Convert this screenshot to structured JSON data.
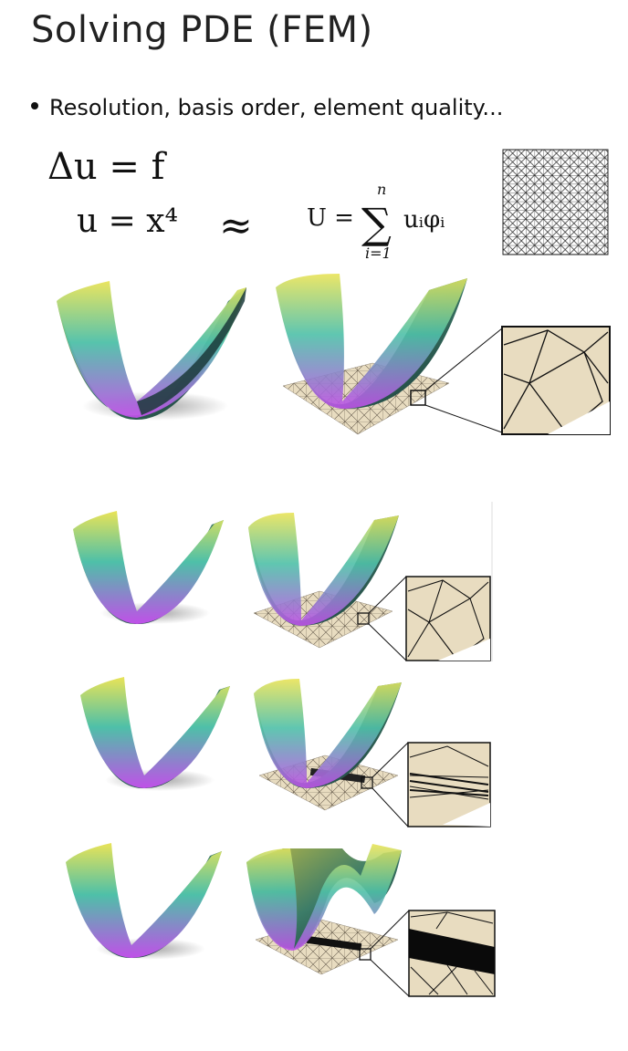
{
  "slide": {
    "title": "Solving PDE (FEM)",
    "bullet": "Resolution, basis order, element quality..."
  },
  "equations": {
    "pde": "Δu = f",
    "exact": "u = x⁴",
    "approx_symbol": "≈",
    "discrete_lhs": "U =",
    "sum_upper": "n",
    "sum_symbol": "∑",
    "sum_lower": "i=1",
    "discrete_rhs": "uᵢφᵢ"
  },
  "colors": {
    "surface_top": "#e9e357",
    "surface_mid": "#4ec0a8",
    "surface_low": "#c050e8",
    "surface_dark": "#1a3a3a",
    "mesh_fill": "#e8dcc0",
    "mesh_line": "#222222"
  }
}
